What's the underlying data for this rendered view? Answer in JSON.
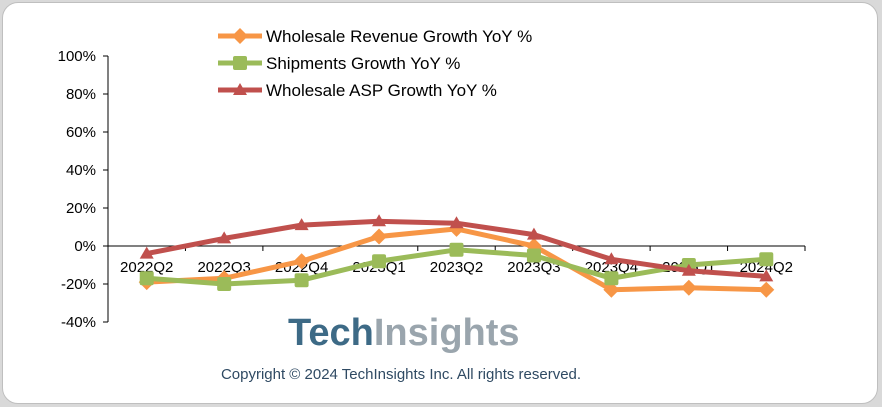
{
  "chart_data": {
    "type": "line",
    "categories": [
      "2022Q2",
      "2022Q3",
      "2022Q4",
      "2023Q1",
      "2023Q2",
      "2023Q3",
      "2023Q4",
      "2024Q1",
      "2024Q2"
    ],
    "ylim": [
      -40,
      100
    ],
    "yticks": [
      -40,
      -20,
      0,
      20,
      40,
      60,
      80,
      100
    ],
    "ytick_labels": [
      "-40%",
      "-20%",
      "0%",
      "20%",
      "40%",
      "60%",
      "80%",
      "100%"
    ],
    "grid": false,
    "legend_placement": "top",
    "series": [
      {
        "name": "Wholesale Revenue Growth YoY %",
        "color": "#f79646",
        "marker": "diamond",
        "values": [
          -19,
          -17,
          -8,
          5,
          9,
          0,
          -23,
          -22,
          -23
        ]
      },
      {
        "name": "Shipments Growth YoY %",
        "color": "#9bbb59",
        "marker": "square",
        "values": [
          -17,
          -20,
          -18,
          -8,
          -2,
          -5,
          -17,
          -10,
          -7
        ]
      },
      {
        "name": "Wholesale ASP Growth YoY %",
        "color": "#c0504d",
        "marker": "triangle",
        "values": [
          -4,
          4,
          11,
          13,
          12,
          6,
          -7,
          -13,
          -16
        ]
      }
    ]
  },
  "logo": {
    "text_part1": "Tech",
    "text_part2": "Insights",
    "color1": "#3d6a86",
    "color2": "#9aa5ad"
  },
  "copyright": "Copyright © 2024 TechInsights Inc.  All rights reserved."
}
